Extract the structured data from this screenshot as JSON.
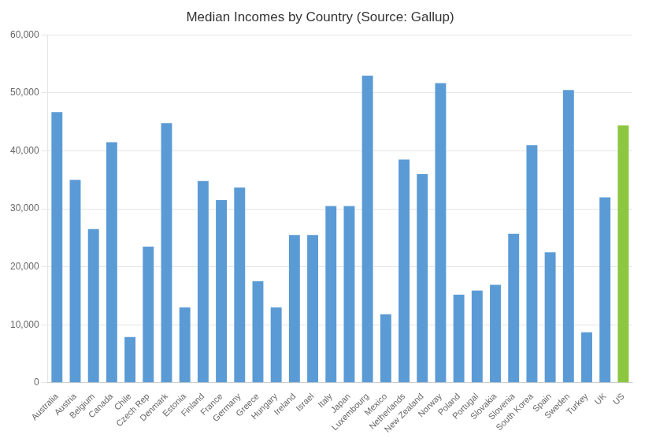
{
  "chart_data": {
    "type": "bar",
    "title": "Median Incomes by Country (Source: Gallup)",
    "categories": [
      "Australia",
      "Austria",
      "Belgium",
      "Canada",
      "Chile",
      "Czech Rep",
      "Denmark",
      "Estonia",
      "Finland",
      "France",
      "Germany",
      "Greece",
      "Hungary",
      "Ireland",
      "Israel",
      "Italy",
      "Japan",
      "Luxembourg",
      "Mexico",
      "Netherlands",
      "New Zealand",
      "Norway",
      "Poland",
      "Portugal",
      "Slovakia",
      "Slovenia",
      "South Korea",
      "Spain",
      "Sweden",
      "Turkey",
      "UK",
      "US"
    ],
    "values": [
      46700,
      35000,
      26500,
      41500,
      7900,
      23500,
      44800,
      13000,
      34800,
      31500,
      33700,
      17500,
      13000,
      25500,
      25500,
      30500,
      30500,
      53000,
      11800,
      38500,
      36000,
      51700,
      15200,
      15900,
      16900,
      25700,
      41000,
      22500,
      50500,
      8700,
      32000,
      44400
    ],
    "colors": [
      "#5B9BD5",
      "#5B9BD5",
      "#5B9BD5",
      "#5B9BD5",
      "#5B9BD5",
      "#5B9BD5",
      "#5B9BD5",
      "#5B9BD5",
      "#5B9BD5",
      "#5B9BD5",
      "#5B9BD5",
      "#5B9BD5",
      "#5B9BD5",
      "#5B9BD5",
      "#5B9BD5",
      "#5B9BD5",
      "#5B9BD5",
      "#5B9BD5",
      "#5B9BD5",
      "#5B9BD5",
      "#5B9BD5",
      "#5B9BD5",
      "#5B9BD5",
      "#5B9BD5",
      "#5B9BD5",
      "#5B9BD5",
      "#5B9BD5",
      "#5B9BD5",
      "#5B9BD5",
      "#5B9BD5",
      "#5B9BD5",
      "#8DC63F"
    ],
    "ylim": [
      0,
      60000
    ],
    "yticks": [
      0,
      {
        "value": 10000,
        "label": "10,000"
      },
      {
        "value": 20000,
        "label": "20,000"
      },
      {
        "value": 30000,
        "label": "30,000"
      },
      {
        "value": 40000,
        "label": "40,000"
      },
      {
        "value": 50000,
        "label": "50,000"
      },
      {
        "value": 60000,
        "label": "60,000"
      }
    ],
    "grid": true
  }
}
